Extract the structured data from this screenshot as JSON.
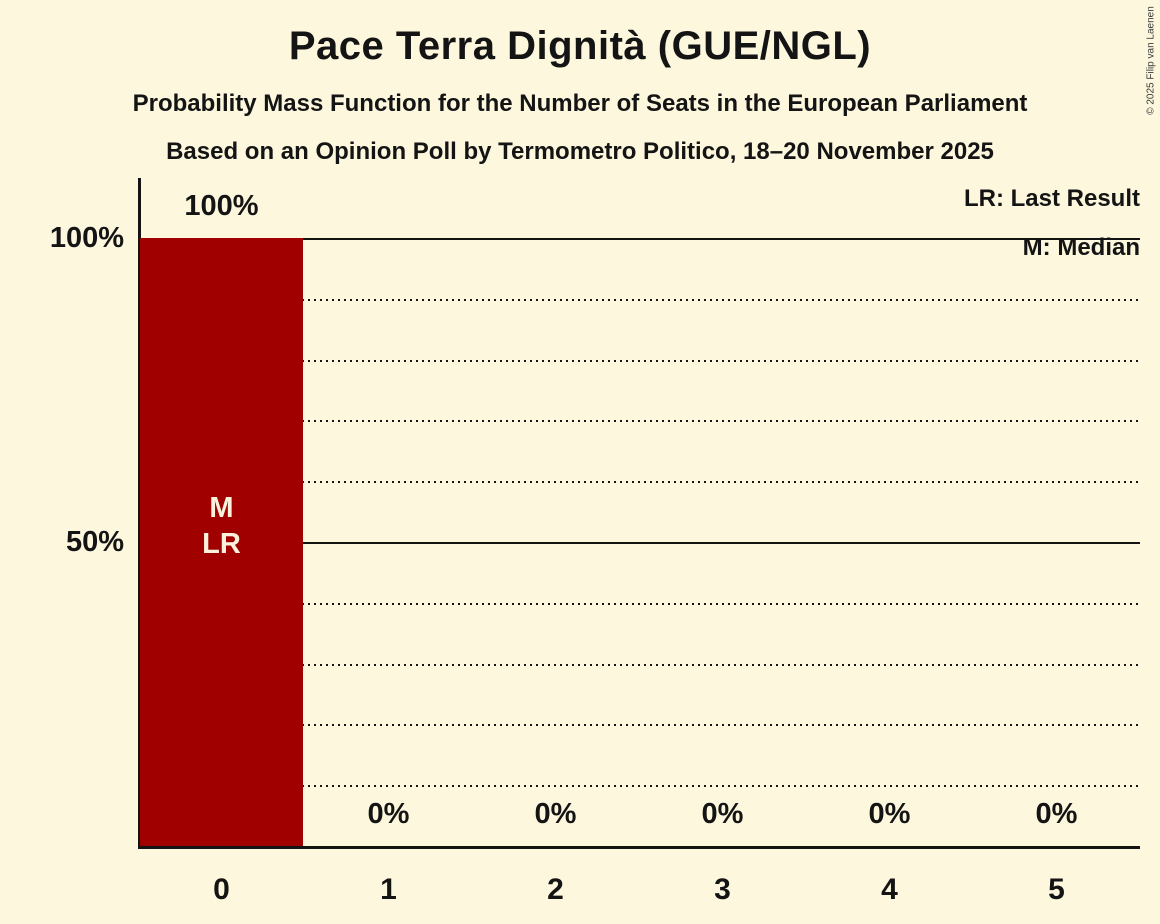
{
  "page": {
    "background_color": "#FCF7DD",
    "text_color": "#141414"
  },
  "copyright": "© 2025 Filip van Laenen",
  "legend": {
    "last_result": "LR: Last Result",
    "median": "M: Median"
  },
  "chart_data": {
    "type": "bar",
    "title": "Pace Terra Dignità (GUE/NGL)",
    "subtitle": "Probability Mass Function for the Number of Seats in the European Parliament",
    "source_line": "Based on an Opinion Poll by Termometro Politico, 18–20 November 2025",
    "xlabel": "",
    "ylabel": "",
    "categories": [
      "0",
      "1",
      "2",
      "3",
      "4",
      "5"
    ],
    "values_pct": [
      100,
      0,
      0,
      0,
      0,
      0
    ],
    "value_labels": [
      "100%",
      "0%",
      "0%",
      "0%",
      "0%",
      "0%"
    ],
    "ylim": [
      0,
      100
    ],
    "grid": "horizontal, 10% steps, dotted; solid at 50% and 100%",
    "legend_position": "top-right",
    "y_ticks": [
      {
        "pct": 100,
        "label": "100%"
      },
      {
        "pct": 50,
        "label": "50%"
      }
    ],
    "gridlines": [
      {
        "pct": 10,
        "style": "dotted"
      },
      {
        "pct": 20,
        "style": "dotted"
      },
      {
        "pct": 30,
        "style": "dotted"
      },
      {
        "pct": 40,
        "style": "dotted"
      },
      {
        "pct": 50,
        "style": "solid"
      },
      {
        "pct": 60,
        "style": "dotted"
      },
      {
        "pct": 70,
        "style": "dotted"
      },
      {
        "pct": 80,
        "style": "dotted"
      },
      {
        "pct": 90,
        "style": "dotted"
      },
      {
        "pct": 100,
        "style": "solid"
      }
    ],
    "bar_color": "#A00000",
    "bar_label_color": "#FAF2DC",
    "bar_annotations": [
      {
        "category_index": 0,
        "lines": [
          "M",
          "LR"
        ]
      }
    ]
  }
}
